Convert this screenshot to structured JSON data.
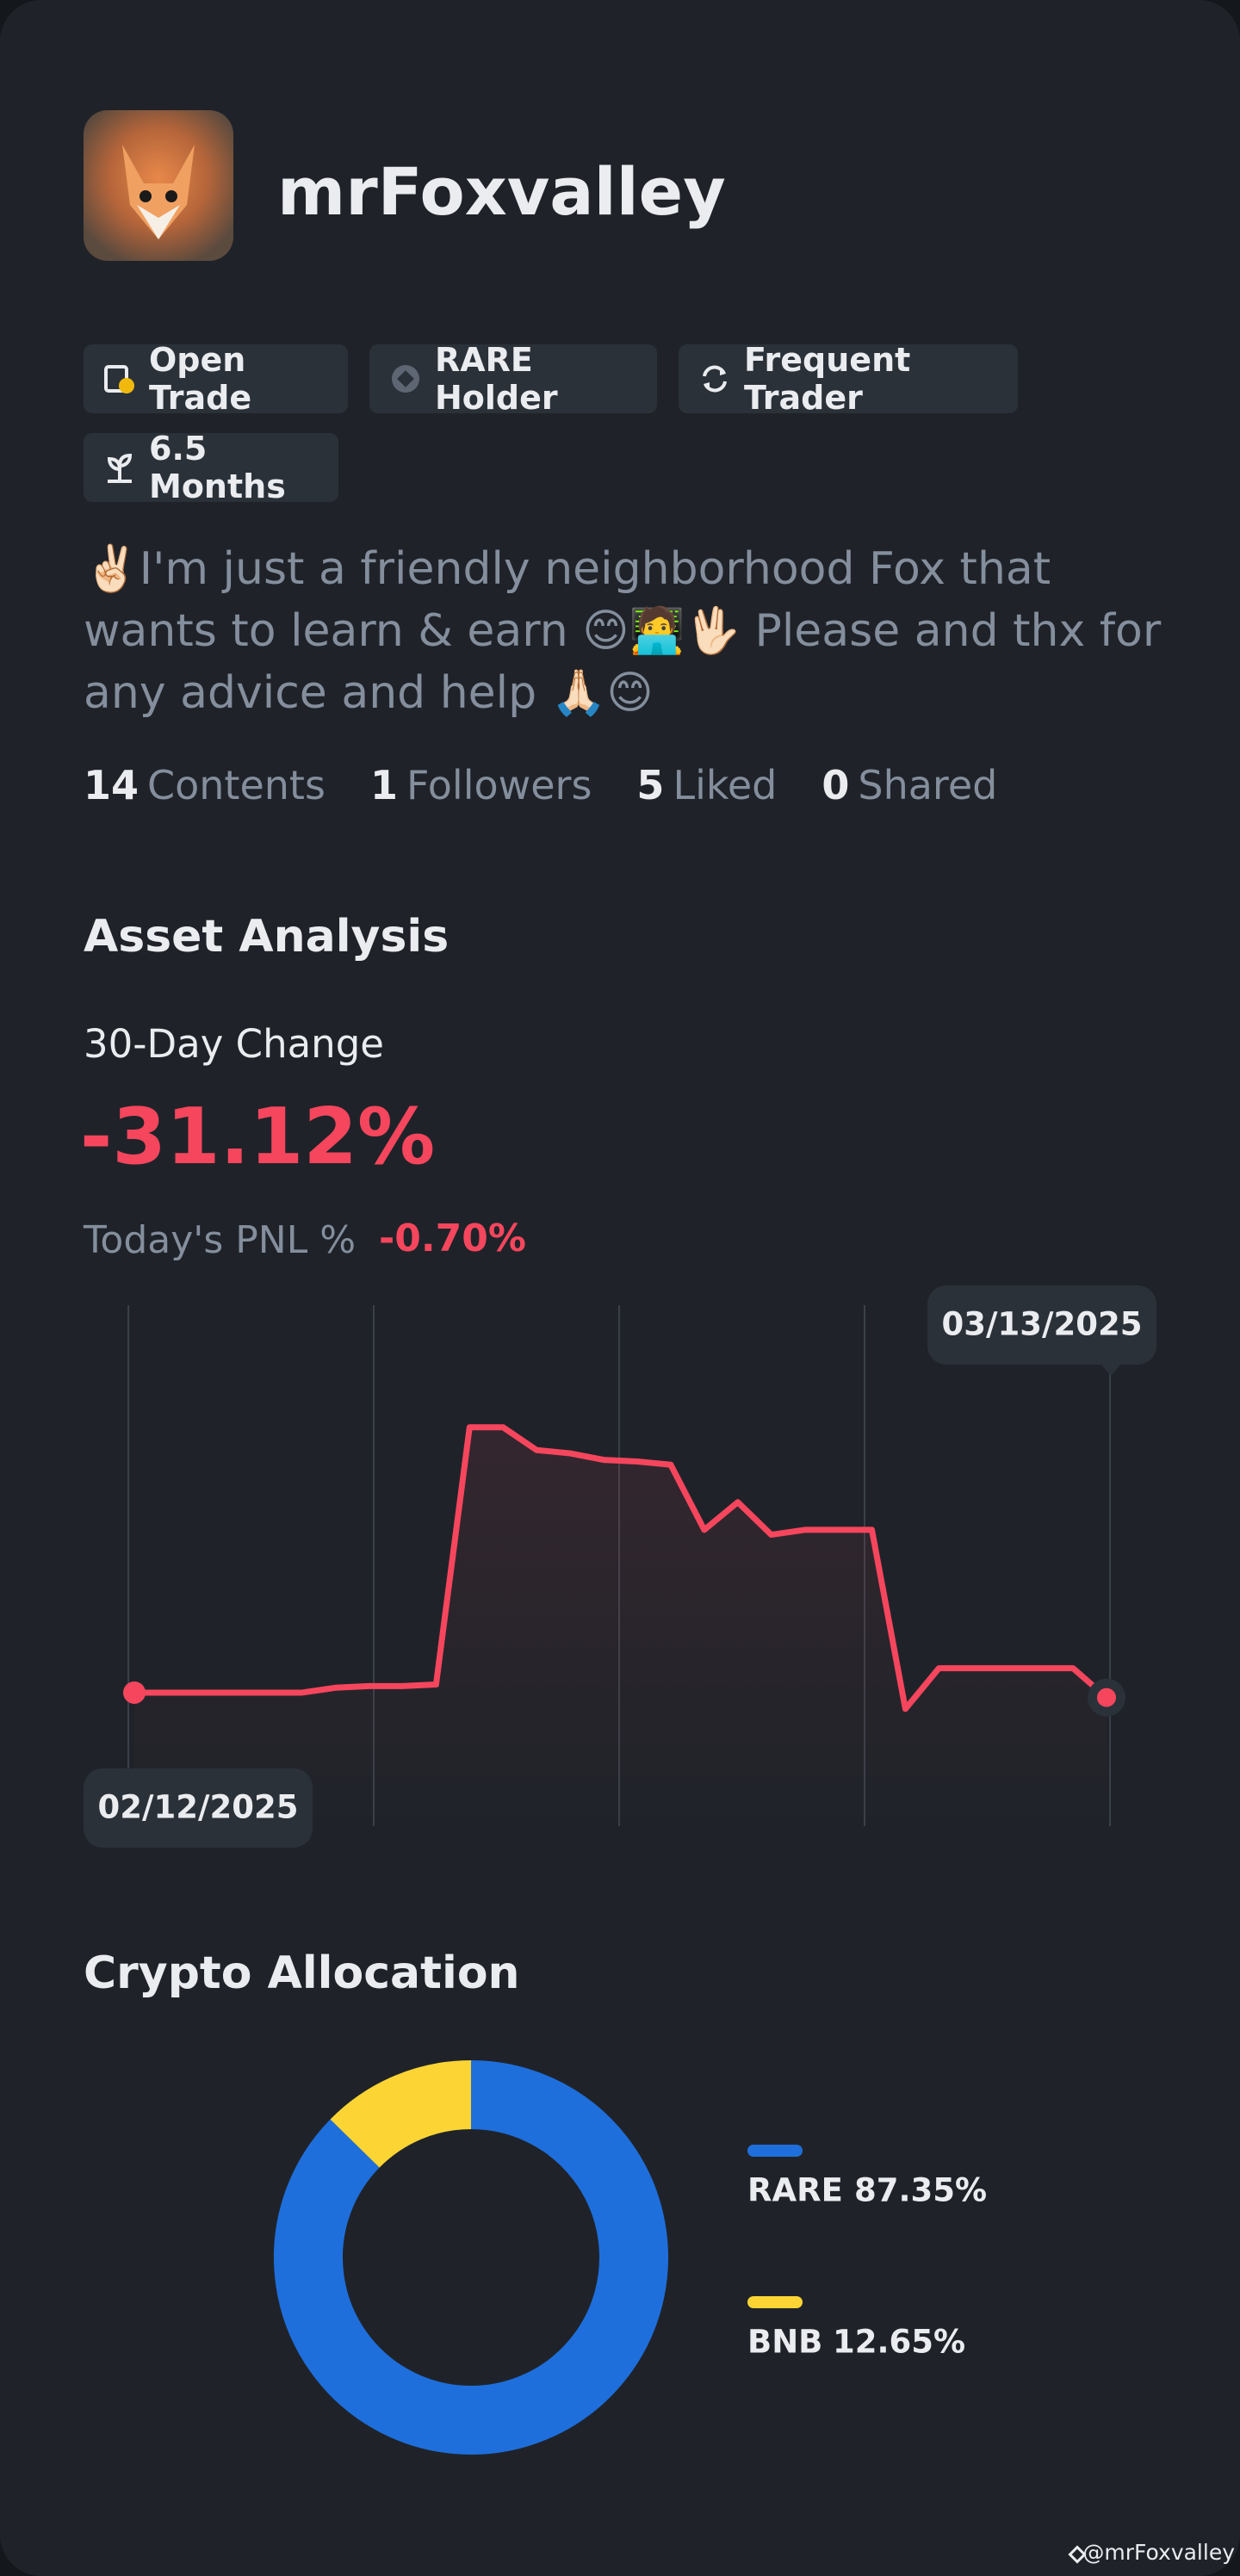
{
  "profile": {
    "username": "mrFoxvalley",
    "badges": [
      "Open Trade",
      "RARE Holder",
      "Frequent Trader",
      "6.5 Months"
    ],
    "bio": "✌🏻I'm just a friendly neighborhood Fox that wants to learn & earn 😊🧑‍💻🖖🏻 Please and thx for any advice and help 🙏🏻😊",
    "stats": [
      {
        "value": "14",
        "label": "Contents"
      },
      {
        "value": "1",
        "label": "Followers"
      },
      {
        "value": "5",
        "label": "Liked"
      },
      {
        "value": "0",
        "label": "Shared"
      }
    ]
  },
  "asset_analysis": {
    "title": "Asset Analysis",
    "change_label": "30-Day Change",
    "change": "-31.12%",
    "pnl_label": "Today's PNL %",
    "pnl": "-0.70%"
  },
  "chart_data": [
    {
      "type": "line",
      "color": "#f6465d",
      "categories": [
        "02/12/2025",
        null,
        null,
        null,
        null,
        null,
        null,
        null,
        null,
        null,
        null,
        null,
        null,
        null,
        null,
        null,
        null,
        null,
        null,
        null,
        null,
        null,
        null,
        null,
        null,
        null,
        null,
        null,
        null,
        "03/13/2025"
      ],
      "values": [
        82,
        82,
        82,
        82,
        82,
        82,
        85,
        86,
        86,
        87,
        245,
        245,
        231,
        229,
        225,
        224,
        222,
        182,
        199,
        179,
        182,
        182,
        182,
        72,
        97,
        97,
        97,
        97,
        97,
        79
      ],
      "ylim": [
        0,
        320
      ]
    },
    {
      "type": "donut",
      "title": "Crypto Allocation",
      "categories": [
        "RARE",
        "BNB"
      ],
      "values": [
        87.35,
        12.65
      ],
      "value_labels": [
        "87.35%",
        "12.65%"
      ],
      "colors": [
        "#1e6fdc",
        "#fcd535"
      ]
    }
  ],
  "watermark": "@mrFoxvalley"
}
